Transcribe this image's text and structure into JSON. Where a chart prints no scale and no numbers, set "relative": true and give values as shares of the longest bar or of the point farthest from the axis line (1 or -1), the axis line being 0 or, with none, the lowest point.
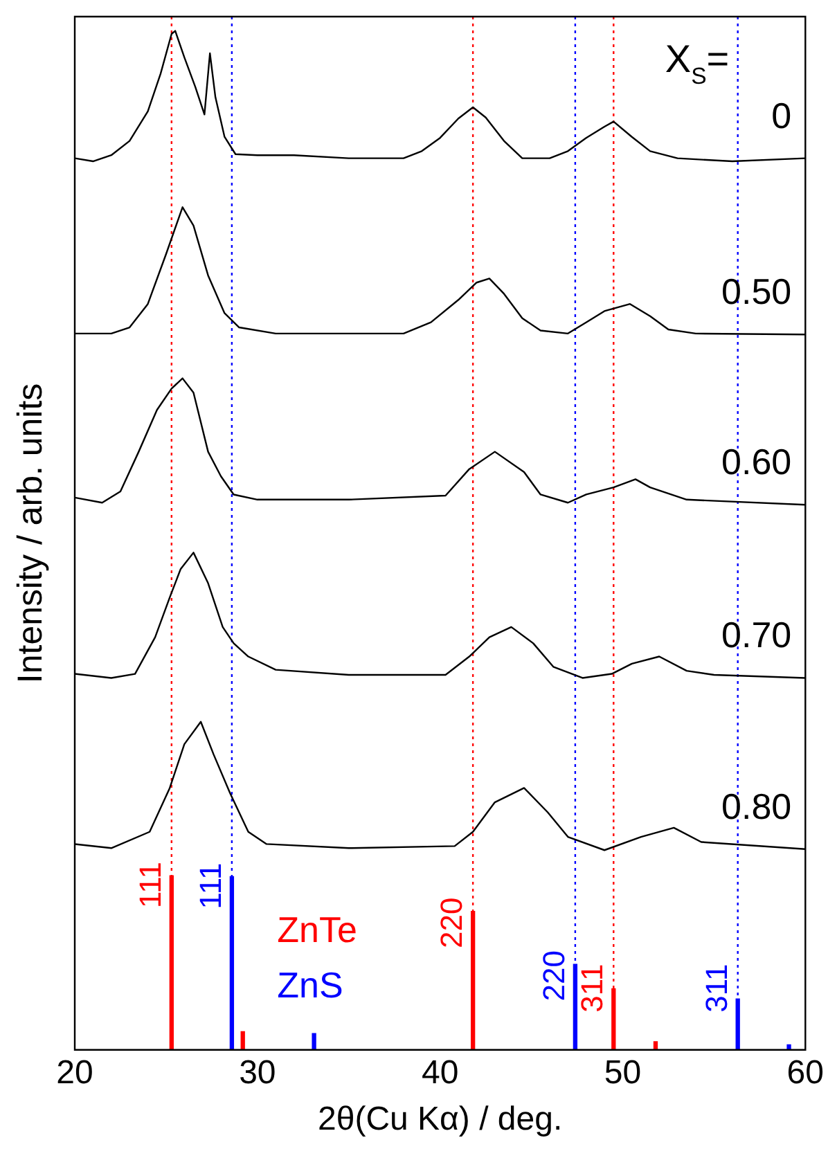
{
  "chart_data": {
    "type": "line",
    "relative": true,
    "xlabel": "2θ(Cu Kα) / deg.",
    "ylabel": "Intensity / arb. units",
    "xlim": [
      20,
      60
    ],
    "xticks": [
      20,
      30,
      40,
      50,
      60
    ],
    "tick_labels": "x",
    "grid": false,
    "marker": "none",
    "line_style": "solid",
    "annotations": [
      "X$_{S}$=",
      {
        "text": "111",
        "x": 25.3,
        "y": 0.171
      },
      {
        "text": "220",
        "x": 41.8,
        "y": 0.136
      },
      {
        "text": "311",
        "x": 49.5,
        "y": 0.06
      },
      {
        "text": "111",
        "x": 28.6,
        "y": 0.17
      },
      {
        "text": "220",
        "x": 47.4,
        "y": 0.084
      },
      {
        "text": "311",
        "x": 56.3,
        "y": 0.05
      }
    ],
    "ref_lines": [
      {
        "axis": "x",
        "value": 25.3,
        "color": "#ff0000",
        "line_style": "dotted"
      },
      {
        "axis": "x",
        "value": 41.8,
        "color": "#ff0000",
        "line_style": "dotted"
      },
      {
        "axis": "x",
        "value": 49.5,
        "color": "#ff0000",
        "line_style": "dotted"
      },
      {
        "axis": "x",
        "value": 28.6,
        "color": "#0000ff",
        "line_style": "dotted"
      },
      {
        "axis": "x",
        "value": 47.4,
        "color": "#0000ff",
        "line_style": "dotted"
      },
      {
        "axis": "x",
        "value": 56.3,
        "color": "#0000ff",
        "line_style": "dotted"
      }
    ],
    "series": [
      {
        "name": "0",
        "color": "#000000",
        "x": [
          20,
          21,
          22,
          23,
          24,
          24.7,
          25.3,
          25.5,
          26,
          26.6,
          27.1,
          27.4,
          27.7,
          28.2,
          28.8,
          30,
          32,
          35,
          38,
          39,
          40,
          41,
          41.8,
          42.5,
          43.5,
          44.5,
          46,
          47,
          48,
          49,
          49.5,
          50.5,
          51.5,
          53,
          56,
          60
        ],
        "values": [
          0.875,
          0.872,
          0.878,
          0.892,
          0.921,
          0.958,
          0.997,
          1,
          0.974,
          0.945,
          0.918,
          0.978,
          0.935,
          0.896,
          0.879,
          0.878,
          0.878,
          0.875,
          0.875,
          0.882,
          0.895,
          0.914,
          0.925,
          0.915,
          0.892,
          0.875,
          0.875,
          0.882,
          0.895,
          0.906,
          0.911,
          0.896,
          0.882,
          0.875,
          0.872,
          0.875
        ]
      },
      {
        "name": "0.50",
        "color": "#000000",
        "x": [
          20,
          22,
          23,
          24,
          25,
          25.9,
          26.5,
          27.3,
          28.2,
          29,
          31,
          35,
          38,
          39.5,
          41,
          42,
          42.7,
          43.5,
          44.5,
          45.5,
          47,
          48,
          49,
          50.4,
          51.5,
          52.5,
          54,
          60
        ],
        "values": [
          0.703,
          0.703,
          0.709,
          0.732,
          0.781,
          0.827,
          0.809,
          0.76,
          0.723,
          0.709,
          0.703,
          0.703,
          0.703,
          0.714,
          0.736,
          0.753,
          0.757,
          0.742,
          0.718,
          0.706,
          0.703,
          0.714,
          0.725,
          0.732,
          0.72,
          0.707,
          0.703,
          0.702
        ]
      },
      {
        "name": "0.60",
        "color": "#000000",
        "x": [
          20,
          21.5,
          22.5,
          23.5,
          24.5,
          25.3,
          25.9,
          26.5,
          27.3,
          28,
          28.7,
          30,
          35,
          40.3,
          41.6,
          43,
          44.6,
          45.5,
          47,
          48,
          49.5,
          50.7,
          51.5,
          53.5,
          60
        ],
        "values": [
          0.542,
          0.537,
          0.548,
          0.587,
          0.628,
          0.649,
          0.659,
          0.645,
          0.587,
          0.563,
          0.545,
          0.54,
          0.54,
          0.544,
          0.57,
          0.587,
          0.567,
          0.545,
          0.537,
          0.545,
          0.552,
          0.56,
          0.552,
          0.54,
          0.535
        ]
      },
      {
        "name": "0.70",
        "color": "#000000",
        "x": [
          20,
          22,
          23.3,
          24.4,
          25.2,
          25.8,
          26.5,
          27.3,
          28.1,
          28.7,
          29.5,
          31,
          35,
          40.3,
          41.6,
          42.7,
          43.9,
          45.1,
          46.2,
          47.8,
          49.4,
          50.5,
          52,
          53.5,
          55,
          60
        ],
        "values": [
          0.369,
          0.365,
          0.369,
          0.405,
          0.444,
          0.472,
          0.488,
          0.458,
          0.415,
          0.399,
          0.386,
          0.373,
          0.368,
          0.368,
          0.386,
          0.405,
          0.415,
          0.399,
          0.376,
          0.365,
          0.369,
          0.379,
          0.386,
          0.372,
          0.368,
          0.365
        ]
      },
      {
        "name": "0.80",
        "color": "#000000",
        "x": [
          20,
          22,
          24.1,
          25.2,
          26,
          26.9,
          27.6,
          28.5,
          29.5,
          30.5,
          35,
          40.8,
          41.8,
          43,
          44.6,
          45.9,
          47,
          49,
          51,
          52.8,
          54.3,
          60
        ],
        "values": [
          0.202,
          0.198,
          0.214,
          0.257,
          0.3,
          0.322,
          0.29,
          0.252,
          0.214,
          0.202,
          0.198,
          0.2,
          0.214,
          0.243,
          0.257,
          0.233,
          0.209,
          0.196,
          0.209,
          0.218,
          0.204,
          0.197
        ]
      },
      {
        "type": "bar",
        "name": "ZnTe",
        "color": "#ff0000",
        "x": [
          25.3,
          29.2,
          41.8,
          49.5,
          51.8
        ],
        "values": [
          0.171,
          0.018,
          0.136,
          0.06,
          0.008
        ]
      },
      {
        "type": "bar",
        "name": "ZnS",
        "color": "#0000ff",
        "x": [
          28.6,
          33.1,
          47.4,
          56.3,
          59.1
        ],
        "values": [
          0.17,
          0.016,
          0.084,
          0.05,
          0.005
        ]
      }
    ]
  }
}
